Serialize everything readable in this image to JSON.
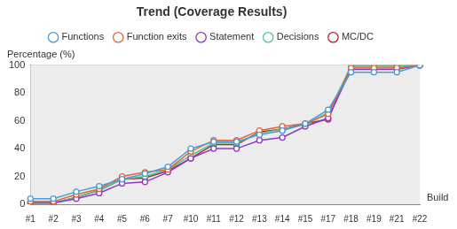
{
  "chart_data": {
    "type": "line",
    "title": "Trend (Coverage Results)",
    "y_label": "Percentage (%)",
    "x_label": "Build",
    "categories": [
      "#1",
      "#2",
      "#3",
      "#4",
      "#5",
      "#6",
      "#7",
      "#10",
      "#11",
      "#12",
      "#13",
      "#14",
      "#15",
      "#17",
      "#18",
      "#19",
      "#21",
      "#22"
    ],
    "series": [
      {
        "name": "Functions",
        "color": "#4a9bd6",
        "marker": "circle",
        "values": [
          4,
          4,
          9,
          13,
          18,
          22,
          27,
          40,
          45,
          45,
          50,
          53,
          58,
          68,
          95,
          95,
          95,
          100
        ]
      },
      {
        "name": "Function exits",
        "color": "#e0643c",
        "marker": "circle",
        "values": [
          2,
          2,
          7,
          11,
          20,
          23,
          25,
          38,
          46,
          46,
          53,
          56,
          58,
          65,
          98,
          98,
          98,
          100
        ]
      },
      {
        "name": "Statement",
        "color": "#8a3cc8",
        "marker": "circle",
        "values": [
          1,
          1,
          4,
          8,
          15,
          16,
          23,
          33,
          40,
          40,
          46,
          48,
          56,
          62,
          97,
          97,
          97,
          100
        ]
      },
      {
        "name": "Decisions",
        "color": "#4cc890",
        "marker": "circle",
        "values": [
          1,
          1,
          5,
          10,
          18,
          20,
          25,
          35,
          44,
          44,
          51,
          54,
          57,
          66,
          99,
          99,
          99,
          100
        ]
      },
      {
        "name": "MC/DC",
        "color": "#b0282c",
        "marker": "circle",
        "values": [
          1,
          1,
          5,
          10,
          18,
          19,
          24,
          33,
          43,
          43,
          52,
          54,
          58,
          61,
          100,
          100,
          100,
          100
        ]
      }
    ],
    "ylim": [
      0,
      100
    ],
    "yticks": [
      0,
      20,
      40,
      60,
      80,
      100
    ],
    "grid": true,
    "legend": "top"
  }
}
